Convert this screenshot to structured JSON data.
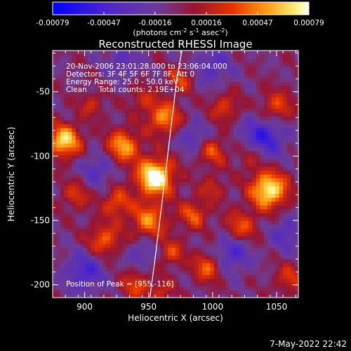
{
  "chart_data": {
    "type": "heatmap",
    "title": "Reconstructed RHESSI Image",
    "xlabel": "Heliocentric X (arcsec)",
    "ylabel": "Heliocentric Y (arcsec)",
    "xlim": [
      875,
      1067
    ],
    "ylim": [
      -210,
      -18
    ],
    "x_ticks": [
      900,
      950,
      1000,
      1050
    ],
    "y_ticks": [
      -50,
      -100,
      -150,
      -200
    ],
    "colorbar": {
      "ticks": [
        "-0.00079",
        "-0.00047",
        "-0.00016",
        "0.00016",
        "0.00047",
        "0.00079"
      ],
      "range": [
        -0.00079,
        0.00079
      ],
      "unit_label": "(photons cm",
      "unit_exp1": "-2",
      "unit_mid": " s",
      "unit_exp2": "-1",
      "unit_end": " asec",
      "unit_exp3": "-2",
      "unit_close": ")"
    },
    "info_lines": [
      "20-Nov-2006 23:01:28.000 to 23:06:04.000",
      "Detectors: 3F 4F 5F 6F 7F 8F, Att 0",
      "Energy Range: 25.0 - 50.0 keV",
      "Clean     Total counts: 2.19E+04"
    ],
    "peak_label": "Position of Peak = [955,-116]",
    "peak": [
      955,
      -116
    ],
    "limb_curve": [
      [
        951,
        -210
      ],
      [
        955,
        -180
      ],
      [
        960,
        -140
      ],
      [
        966,
        -90
      ],
      [
        972,
        -40
      ],
      [
        976,
        -18
      ]
    ],
    "sources": [
      [
        955,
        -116,
        1.0,
        10
      ],
      [
        1044,
        -126,
        0.9,
        10
      ],
      [
        884,
        -88,
        0.8,
        9
      ],
      [
        930,
        -92,
        0.65,
        9
      ],
      [
        962,
        -70,
        0.6,
        9
      ],
      [
        950,
        -150,
        0.55,
        10
      ],
      [
        985,
        -145,
        0.45,
        8
      ],
      [
        1022,
        -155,
        0.45,
        9
      ],
      [
        915,
        -165,
        0.5,
        9
      ],
      [
        996,
        -186,
        0.5,
        8
      ],
      [
        1050,
        -62,
        0.45,
        9
      ],
      [
        975,
        -40,
        0.4,
        7
      ],
      [
        1000,
        -96,
        0.42,
        8
      ],
      [
        925,
        -136,
        0.45,
        8
      ],
      [
        1010,
        -62,
        0.38,
        8
      ],
      [
        940,
        -200,
        0.4,
        8
      ],
      [
        1060,
        -195,
        0.35,
        8
      ],
      [
        893,
        -130,
        0.35,
        8
      ],
      [
        968,
        -175,
        0.4,
        7
      ],
      [
        1000,
        -125,
        0.3,
        7
      ],
      [
        945,
        -55,
        0.3,
        7
      ],
      [
        1030,
        -100,
        0.3,
        8
      ],
      [
        905,
        -60,
        0.3,
        7
      ],
      [
        960,
        -205,
        0.3,
        7
      ]
    ],
    "sinks": [
      [
        900,
        -190,
        -0.45,
        11
      ],
      [
        1040,
        -85,
        -0.55,
        12
      ],
      [
        1015,
        -175,
        -0.45,
        10
      ],
      [
        910,
        -110,
        -0.35,
        9
      ],
      [
        1000,
        -30,
        -0.35,
        10
      ],
      [
        930,
        -25,
        -0.3,
        9
      ],
      [
        985,
        -85,
        -0.35,
        8
      ],
      [
        1058,
        -160,
        -0.35,
        9
      ],
      [
        945,
        -175,
        -0.3,
        8
      ]
    ],
    "footer": "7-May-2022 22:42"
  }
}
